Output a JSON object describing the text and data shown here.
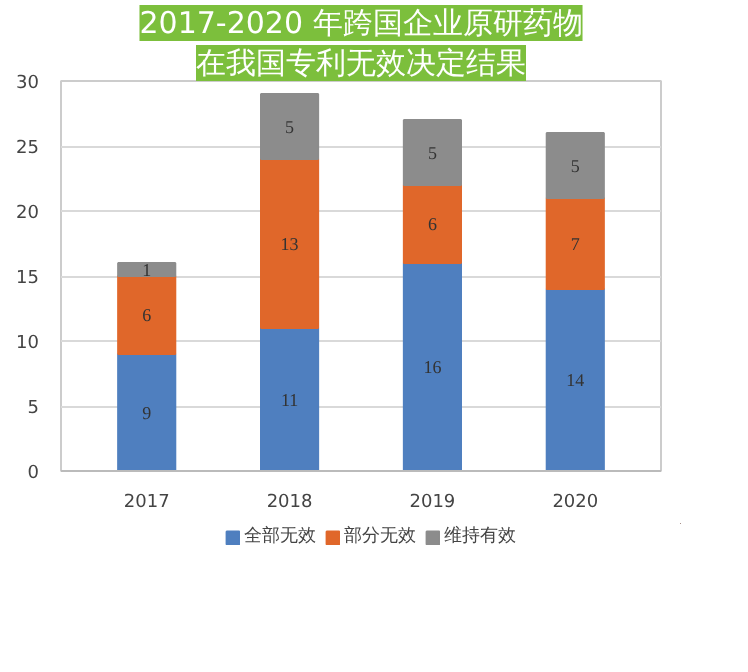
{
  "chart_data": {
    "type": "bar",
    "stacked": true,
    "title": "2017-2020 年跨国企业原研药物",
    "subtitle": "在我国专利无效决定结果",
    "categories": [
      "2017",
      "2018",
      "2019",
      "2020"
    ],
    "series": [
      {
        "name": "全部无效",
        "color": "#4f7fbf",
        "values": [
          9,
          11,
          16,
          14
        ]
      },
      {
        "name": "部分无效",
        "color": "#e0672a",
        "values": [
          6,
          13,
          6,
          7
        ]
      },
      {
        "name": "维持有效",
        "color": "#8c8c8c",
        "values": [
          1,
          5,
          5,
          5
        ]
      }
    ],
    "ylim": [
      0,
      30
    ],
    "yticks": [
      0,
      5,
      10,
      15,
      20,
      25,
      30
    ],
    "grid": "y",
    "legend": "bottom",
    "data_labels": true
  }
}
